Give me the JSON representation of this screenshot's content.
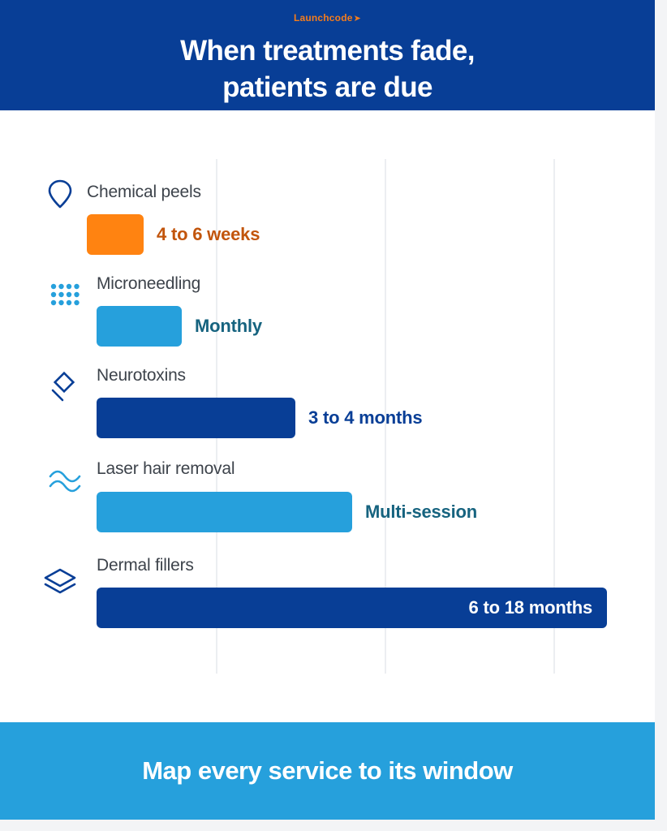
{
  "header": {
    "brand": "Launchcode",
    "title_line1": "When treatments fade,",
    "title_line2": "patients are due"
  },
  "colors": {
    "navy": "#083e96",
    "blue": "#26a0dc",
    "orange": "#ff8311",
    "orange_text": "#c2550c",
    "teal_text": "#16637f"
  },
  "chart_data": {
    "type": "bar",
    "orientation": "horizontal",
    "title": "When treatments fade, patients are due",
    "categories": [
      "Chemical peels",
      "Microneedling",
      "Neurotoxins",
      "Laser hair removal",
      "Dermal fillers"
    ],
    "values": [
      1,
      1.5,
      3.5,
      4.5,
      9
    ],
    "value_labels": [
      "4 to 6 weeks",
      "Monthly",
      "3 to 4 months",
      "Multi-session",
      "6 to 18 months"
    ],
    "icons": [
      "pin-icon",
      "dots-grid-icon",
      "diamond-icon",
      "waves-icon",
      "layers-icon"
    ],
    "bar_colors": [
      "#ff8311",
      "#26a0dc",
      "#083e96",
      "#26a0dc",
      "#083e96"
    ],
    "label_colors": [
      "#c2550c",
      "#16637f",
      "#083e96",
      "#16637f",
      "#ffffff"
    ],
    "label_inside": [
      false,
      false,
      false,
      false,
      true
    ],
    "grid": true,
    "xlabel": "",
    "ylabel": ""
  },
  "footer": {
    "text": "Map every service to its window"
  }
}
